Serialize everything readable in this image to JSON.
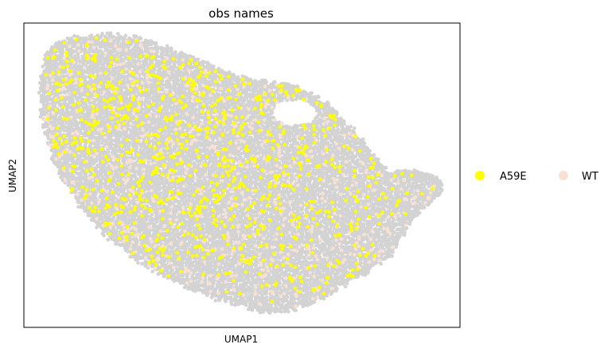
{
  "chart_data": {
    "type": "scatter",
    "title": "obs names",
    "xlabel": "UMAP1",
    "ylabel": "UMAP2",
    "xlim": [
      -6.0,
      6.0
    ],
    "ylim": [
      -4.5,
      4.5
    ],
    "grid": false,
    "legend_position": "right",
    "background_color": "#d3d3d3",
    "series": [
      {
        "name": "A59E",
        "color": "#ffff00",
        "approx_count": 900
      },
      {
        "name": "WT",
        "color": "#f8e1d3",
        "approx_count": 700
      }
    ],
    "x_ticks": [],
    "y_ticks": []
  }
}
